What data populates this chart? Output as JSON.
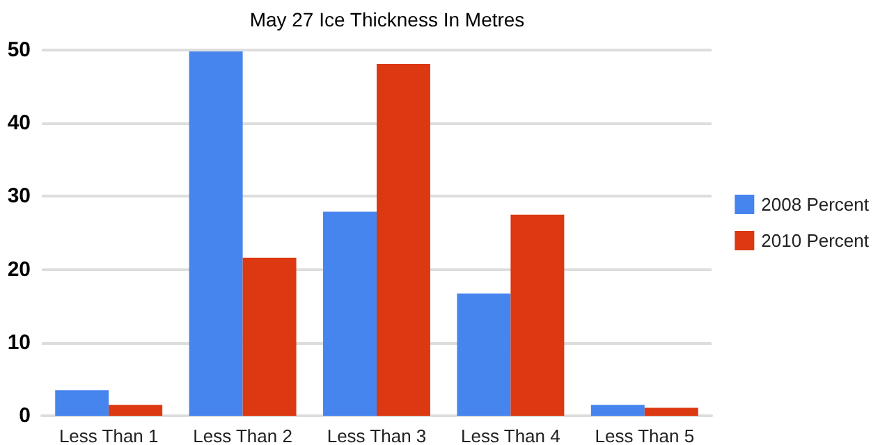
{
  "chart_data": {
    "type": "bar",
    "title": "May 27 Ice Thickness In Metres",
    "categories": [
      "Less Than 1",
      "Less Than 2",
      "Less Than 3",
      "Less Than 4",
      "Less Than 5"
    ],
    "series": [
      {
        "name": "2008 Percent",
        "color": "#4684ee",
        "values": [
          3.5,
          49.8,
          27.9,
          16.7,
          1.5
        ]
      },
      {
        "name": "2010 Percent",
        "color": "#dc3912",
        "values": [
          1.5,
          21.6,
          48.1,
          27.5,
          1.1
        ]
      }
    ],
    "ylim": [
      0,
      50
    ],
    "yticks": [
      0,
      10,
      20,
      30,
      40,
      50
    ],
    "grid": "y",
    "legend": "right"
  }
}
